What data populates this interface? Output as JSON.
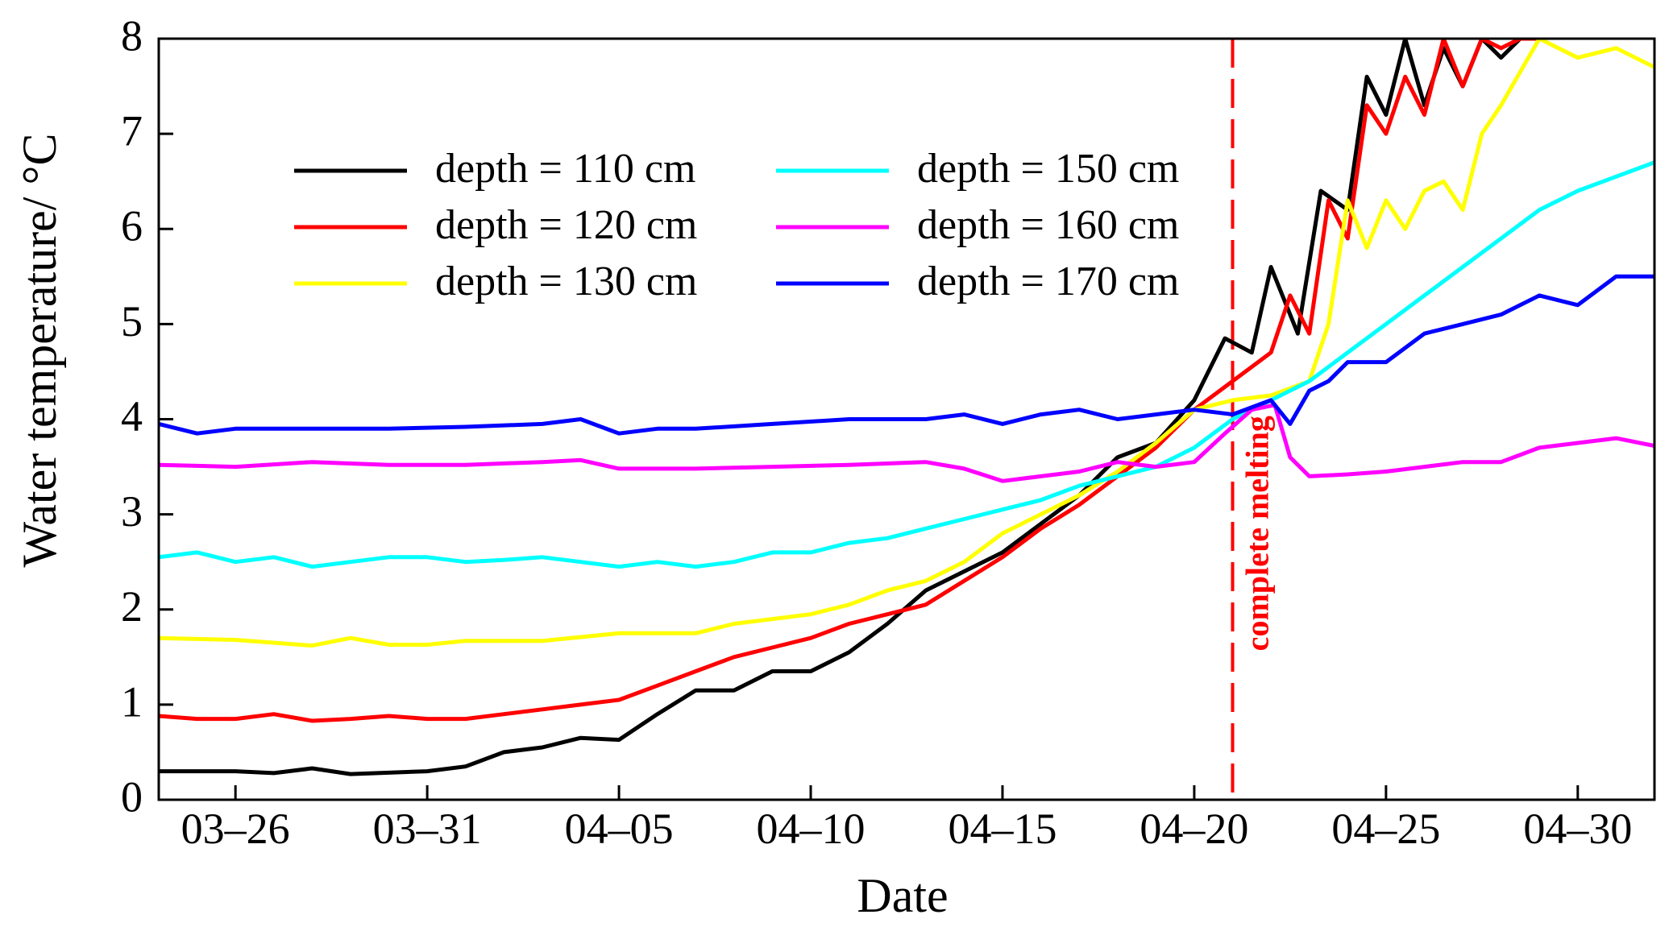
{
  "chart_data": {
    "type": "line",
    "title": "",
    "xlabel": "Date",
    "ylabel": "Water temperature/ °C",
    "xlim": [
      -2,
      37
    ],
    "ylim": [
      0,
      8
    ],
    "x_unit": "days since 03-26",
    "yticks": [
      0,
      1,
      2,
      3,
      4,
      5,
      6,
      7,
      8
    ],
    "xticks": [
      {
        "x": 0,
        "label": "03–26"
      },
      {
        "x": 5,
        "label": "03–31"
      },
      {
        "x": 10,
        "label": "04–05"
      },
      {
        "x": 15,
        "label": "04–10"
      },
      {
        "x": 20,
        "label": "04–15"
      },
      {
        "x": 25,
        "label": "04–20"
      },
      {
        "x": 30,
        "label": "04–25"
      },
      {
        "x": 35,
        "label": "04–30"
      }
    ],
    "grid": false,
    "legend": "upper-left, two columns",
    "annotation": {
      "x": 26,
      "label": "complete melting",
      "color": "#ff0000"
    },
    "series": [
      {
        "name": "depth = 110 cm",
        "color": "#000000",
        "x": [
          -2,
          0,
          1,
          2,
          3,
          5,
          6,
          7,
          8,
          9,
          10,
          11,
          12,
          13,
          14,
          15,
          16,
          17,
          18,
          19,
          20,
          21,
          22,
          23,
          24,
          25,
          25.8,
          26.5,
          27,
          27.7,
          28.3,
          29,
          29.5,
          30,
          30.5,
          31,
          31.5,
          32,
          32.5,
          33,
          33.5,
          34
        ],
        "y": [
          0.3,
          0.3,
          0.28,
          0.33,
          0.27,
          0.3,
          0.35,
          0.5,
          0.55,
          0.65,
          0.63,
          0.9,
          1.15,
          1.15,
          1.35,
          1.35,
          1.55,
          1.85,
          2.2,
          2.4,
          2.6,
          2.9,
          3.2,
          3.6,
          3.75,
          4.2,
          4.85,
          4.7,
          5.6,
          4.9,
          6.4,
          6.2,
          7.6,
          7.2,
          8.0,
          7.3,
          7.9,
          7.5,
          8.0,
          7.8,
          8.0,
          8.0
        ]
      },
      {
        "name": "depth = 120 cm",
        "color": "#ff0000",
        "x": [
          -2,
          -1,
          0,
          1,
          2,
          3,
          4,
          5,
          6,
          7,
          8,
          9,
          10,
          11,
          12,
          13,
          14,
          15,
          16,
          17,
          18,
          19,
          20,
          21,
          22,
          23,
          24,
          25,
          26,
          27,
          27.5,
          28,
          28.5,
          29,
          29.5,
          30,
          30.5,
          31,
          31.5,
          32,
          32.5,
          33,
          33.5,
          34
        ],
        "y": [
          0.88,
          0.85,
          0.85,
          0.9,
          0.83,
          0.85,
          0.88,
          0.85,
          0.85,
          0.9,
          0.95,
          1.0,
          1.05,
          1.2,
          1.35,
          1.5,
          1.6,
          1.7,
          1.85,
          1.95,
          2.05,
          2.3,
          2.55,
          2.85,
          3.1,
          3.4,
          3.7,
          4.1,
          4.4,
          4.7,
          5.3,
          4.9,
          6.3,
          5.9,
          7.3,
          7.0,
          7.6,
          7.2,
          8.0,
          7.5,
          8.0,
          7.9,
          8.0,
          8.0
        ]
      },
      {
        "name": "depth = 130 cm",
        "color": "#ffff00",
        "x": [
          -2,
          0,
          2,
          3,
          4,
          5,
          6,
          8,
          10,
          12,
          13,
          14,
          15,
          16,
          17,
          18,
          19,
          20,
          21,
          22,
          23,
          24,
          25,
          26,
          27,
          28,
          28.5,
          29,
          29.5,
          30,
          30.5,
          31,
          31.5,
          32,
          32.5,
          33,
          34,
          35,
          36,
          37
        ],
        "y": [
          1.7,
          1.68,
          1.62,
          1.7,
          1.63,
          1.63,
          1.67,
          1.67,
          1.75,
          1.75,
          1.85,
          1.9,
          1.95,
          2.05,
          2.2,
          2.3,
          2.5,
          2.8,
          3.0,
          3.2,
          3.45,
          3.75,
          4.1,
          4.2,
          4.25,
          4.4,
          5.0,
          6.3,
          5.8,
          6.3,
          6.0,
          6.4,
          6.5,
          6.2,
          7.0,
          7.3,
          8.0,
          7.8,
          7.9,
          7.7
        ]
      },
      {
        "name": "depth = 150 cm",
        "color": "#00ffff",
        "x": [
          -2,
          -1,
          0,
          1,
          2,
          3,
          4,
          5,
          6,
          7,
          8,
          9,
          10,
          11,
          12,
          13,
          14,
          15,
          16,
          17,
          18,
          19,
          20,
          21,
          22,
          23,
          24,
          25,
          26,
          27,
          28,
          29,
          30,
          31,
          32,
          33,
          34,
          35,
          36,
          37
        ],
        "y": [
          2.55,
          2.6,
          2.5,
          2.55,
          2.45,
          2.5,
          2.55,
          2.55,
          2.5,
          2.52,
          2.55,
          2.5,
          2.45,
          2.5,
          2.45,
          2.5,
          2.6,
          2.6,
          2.7,
          2.75,
          2.85,
          2.95,
          3.05,
          3.15,
          3.3,
          3.4,
          3.5,
          3.7,
          4.0,
          4.2,
          4.4,
          4.7,
          5.0,
          5.3,
          5.6,
          5.9,
          6.2,
          6.4,
          6.55,
          6.7
        ]
      },
      {
        "name": "depth = 160 cm",
        "color": "#ff00ff",
        "x": [
          -2,
          0,
          2,
          4,
          6,
          8,
          9,
          10,
          12,
          14,
          16,
          18,
          19,
          20,
          21,
          22,
          23,
          24,
          25,
          25.8,
          26.5,
          27.1,
          27.5,
          28,
          29,
          30,
          31,
          32,
          33,
          34,
          35,
          36,
          37
        ],
        "y": [
          3.52,
          3.5,
          3.55,
          3.52,
          3.52,
          3.55,
          3.57,
          3.48,
          3.48,
          3.5,
          3.52,
          3.55,
          3.48,
          3.35,
          3.4,
          3.45,
          3.55,
          3.5,
          3.55,
          3.85,
          4.1,
          4.15,
          3.6,
          3.4,
          3.42,
          3.45,
          3.5,
          3.55,
          3.55,
          3.7,
          3.75,
          3.8,
          3.72
        ]
      },
      {
        "name": "depth = 170 cm",
        "color": "#0000ff",
        "x": [
          -2,
          -1,
          0,
          2,
          4,
          6,
          8,
          9,
          10,
          11,
          12,
          14,
          16,
          18,
          19,
          20,
          21,
          22,
          23,
          24,
          25,
          26,
          27,
          27.5,
          28,
          28.5,
          29,
          30,
          31,
          32,
          33,
          34,
          35,
          36,
          37
        ],
        "y": [
          3.95,
          3.85,
          3.9,
          3.9,
          3.9,
          3.92,
          3.95,
          4.0,
          3.85,
          3.9,
          3.9,
          3.95,
          4.0,
          4.0,
          4.05,
          3.95,
          4.05,
          4.1,
          4.0,
          4.05,
          4.1,
          4.05,
          4.2,
          3.95,
          4.3,
          4.4,
          4.6,
          4.6,
          4.9,
          5.0,
          5.1,
          5.3,
          5.2,
          5.5,
          5.5
        ]
      }
    ]
  }
}
